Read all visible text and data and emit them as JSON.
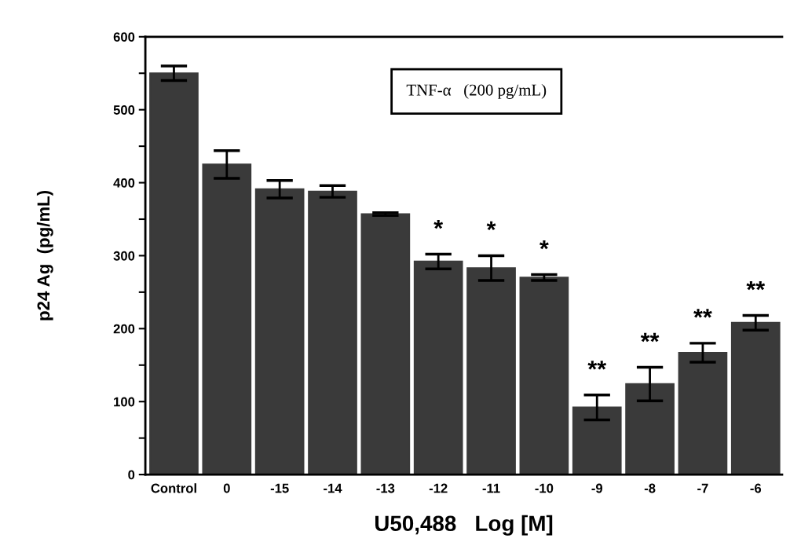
{
  "chart_data": {
    "type": "bar",
    "xlabel": "U50,488   Log [M]",
    "ylabel": "p24 Ag  (pg/mL)",
    "categories": [
      "Control",
      "0",
      "-15",
      "-14",
      "-13",
      "-12",
      "-11",
      "-10",
      "-9",
      "-8",
      "-7",
      "-6"
    ],
    "series": [
      {
        "color": "#3a3a3a",
        "values": [
          550,
          425,
          391,
          388,
          357,
          292,
          283,
          270,
          92,
          124,
          167,
          208
        ],
        "errors": [
          10,
          19,
          12,
          8,
          2,
          10,
          17,
          4,
          17,
          23,
          13,
          10
        ]
      }
    ],
    "ylim": [
      0,
      600
    ],
    "yticks": [
      0,
      {
        "value": 50,
        "label": null
      },
      100,
      {
        "value": 150,
        "label": null
      },
      200,
      {
        "value": 250,
        "label": null
      },
      300,
      {
        "value": 350,
        "label": null
      },
      400,
      {
        "value": 450,
        "label": null
      },
      500,
      {
        "value": 550,
        "label": null
      },
      600
    ],
    "grid": false,
    "legend": false,
    "annotations": [
      "TNF-α   (200 pg/mL)",
      {
        "text": "*",
        "x": "-12",
        "y": 292
      },
      {
        "text": "*",
        "x": "-11",
        "y": 283
      },
      {
        "text": "*",
        "x": "-10",
        "y": 270
      },
      {
        "text": "**",
        "x": "-9",
        "y": 92
      },
      {
        "text": "**",
        "x": "-8",
        "y": 124
      },
      {
        "text": "**",
        "x": "-7",
        "y": 167
      },
      {
        "text": "**",
        "x": "-6",
        "y": 208
      }
    ]
  }
}
